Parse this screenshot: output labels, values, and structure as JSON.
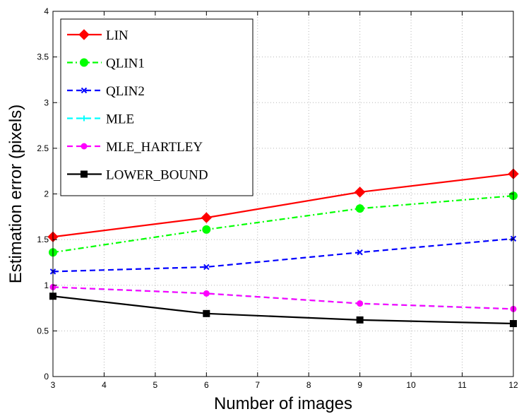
{
  "chart_data": {
    "type": "line",
    "title": "",
    "xlabel": "Number of images",
    "ylabel": "Estimation error (pixels)",
    "xlim": [
      3,
      12
    ],
    "ylim": [
      0,
      4
    ],
    "grid": true,
    "legend_position": "top-left",
    "x_ticks": [
      "3",
      "4",
      "5",
      "6",
      "7",
      "8",
      "9",
      "10",
      "11",
      "12"
    ],
    "y_ticks": [
      "0",
      "0.5",
      "1",
      "1.5",
      "2",
      "2.5",
      "3",
      "3.5",
      "4"
    ],
    "x": [
      3,
      6,
      9,
      12
    ],
    "series": [
      {
        "name": "LIN",
        "values": [
          1.53,
          1.74,
          2.02,
          2.22
        ],
        "color": "#ff0000",
        "marker": "diamond",
        "dash": "solid"
      },
      {
        "name": "QLIN1",
        "values": [
          1.36,
          1.61,
          1.84,
          1.98
        ],
        "color": "#00ff00",
        "marker": "circle",
        "dash": "dashdot"
      },
      {
        "name": "QLIN2",
        "values": [
          1.15,
          1.2,
          1.36,
          1.51
        ],
        "color": "#0000ff",
        "marker": "x",
        "dash": "dashed"
      },
      {
        "name": "MLE",
        "values": [
          0.98,
          0.91,
          0.8,
          0.74
        ],
        "color": "#00ffff",
        "marker": "plus",
        "dash": "dashed"
      },
      {
        "name": "MLE_HARTLEY",
        "values": [
          0.98,
          0.91,
          0.8,
          0.74
        ],
        "color": "#ff00ff",
        "marker": "dot",
        "dash": "dashed"
      },
      {
        "name": "LOWER_BOUND",
        "values": [
          0.88,
          0.69,
          0.62,
          0.58
        ],
        "color": "#000000",
        "marker": "square",
        "dash": "solid"
      }
    ]
  }
}
